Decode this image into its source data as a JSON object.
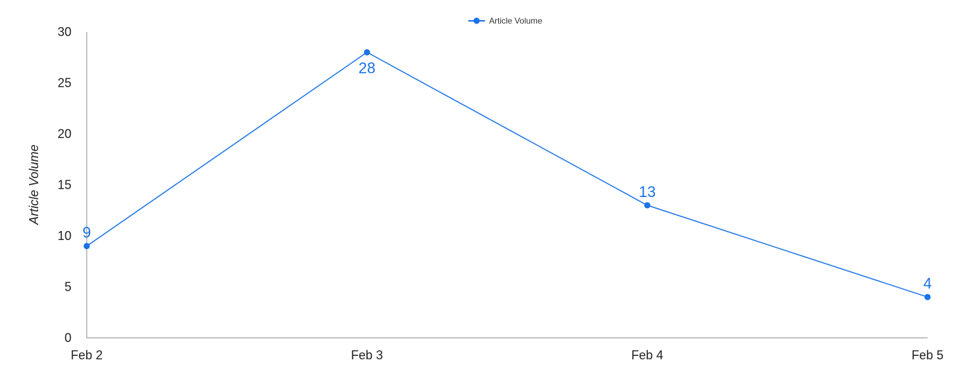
{
  "chart_data": {
    "type": "line",
    "title": "",
    "x": [
      "Feb 2",
      "Feb 3",
      "Feb 4",
      "Feb 5"
    ],
    "series": [
      {
        "name": "Article Volume",
        "values": [
          9,
          28,
          13,
          4
        ],
        "color": "#1a73e8"
      }
    ],
    "xlabel": "",
    "ylabel": "Article Volume",
    "ylim": [
      0,
      30
    ],
    "yticks": [
      "0",
      "5",
      "10",
      "15",
      "20",
      "25",
      "30"
    ],
    "data_labels": [
      "9",
      "28",
      "13",
      "4"
    ],
    "legend": {
      "position": "top-center",
      "label": "Article Volume"
    },
    "grid": false,
    "axis_color": "#888888"
  }
}
